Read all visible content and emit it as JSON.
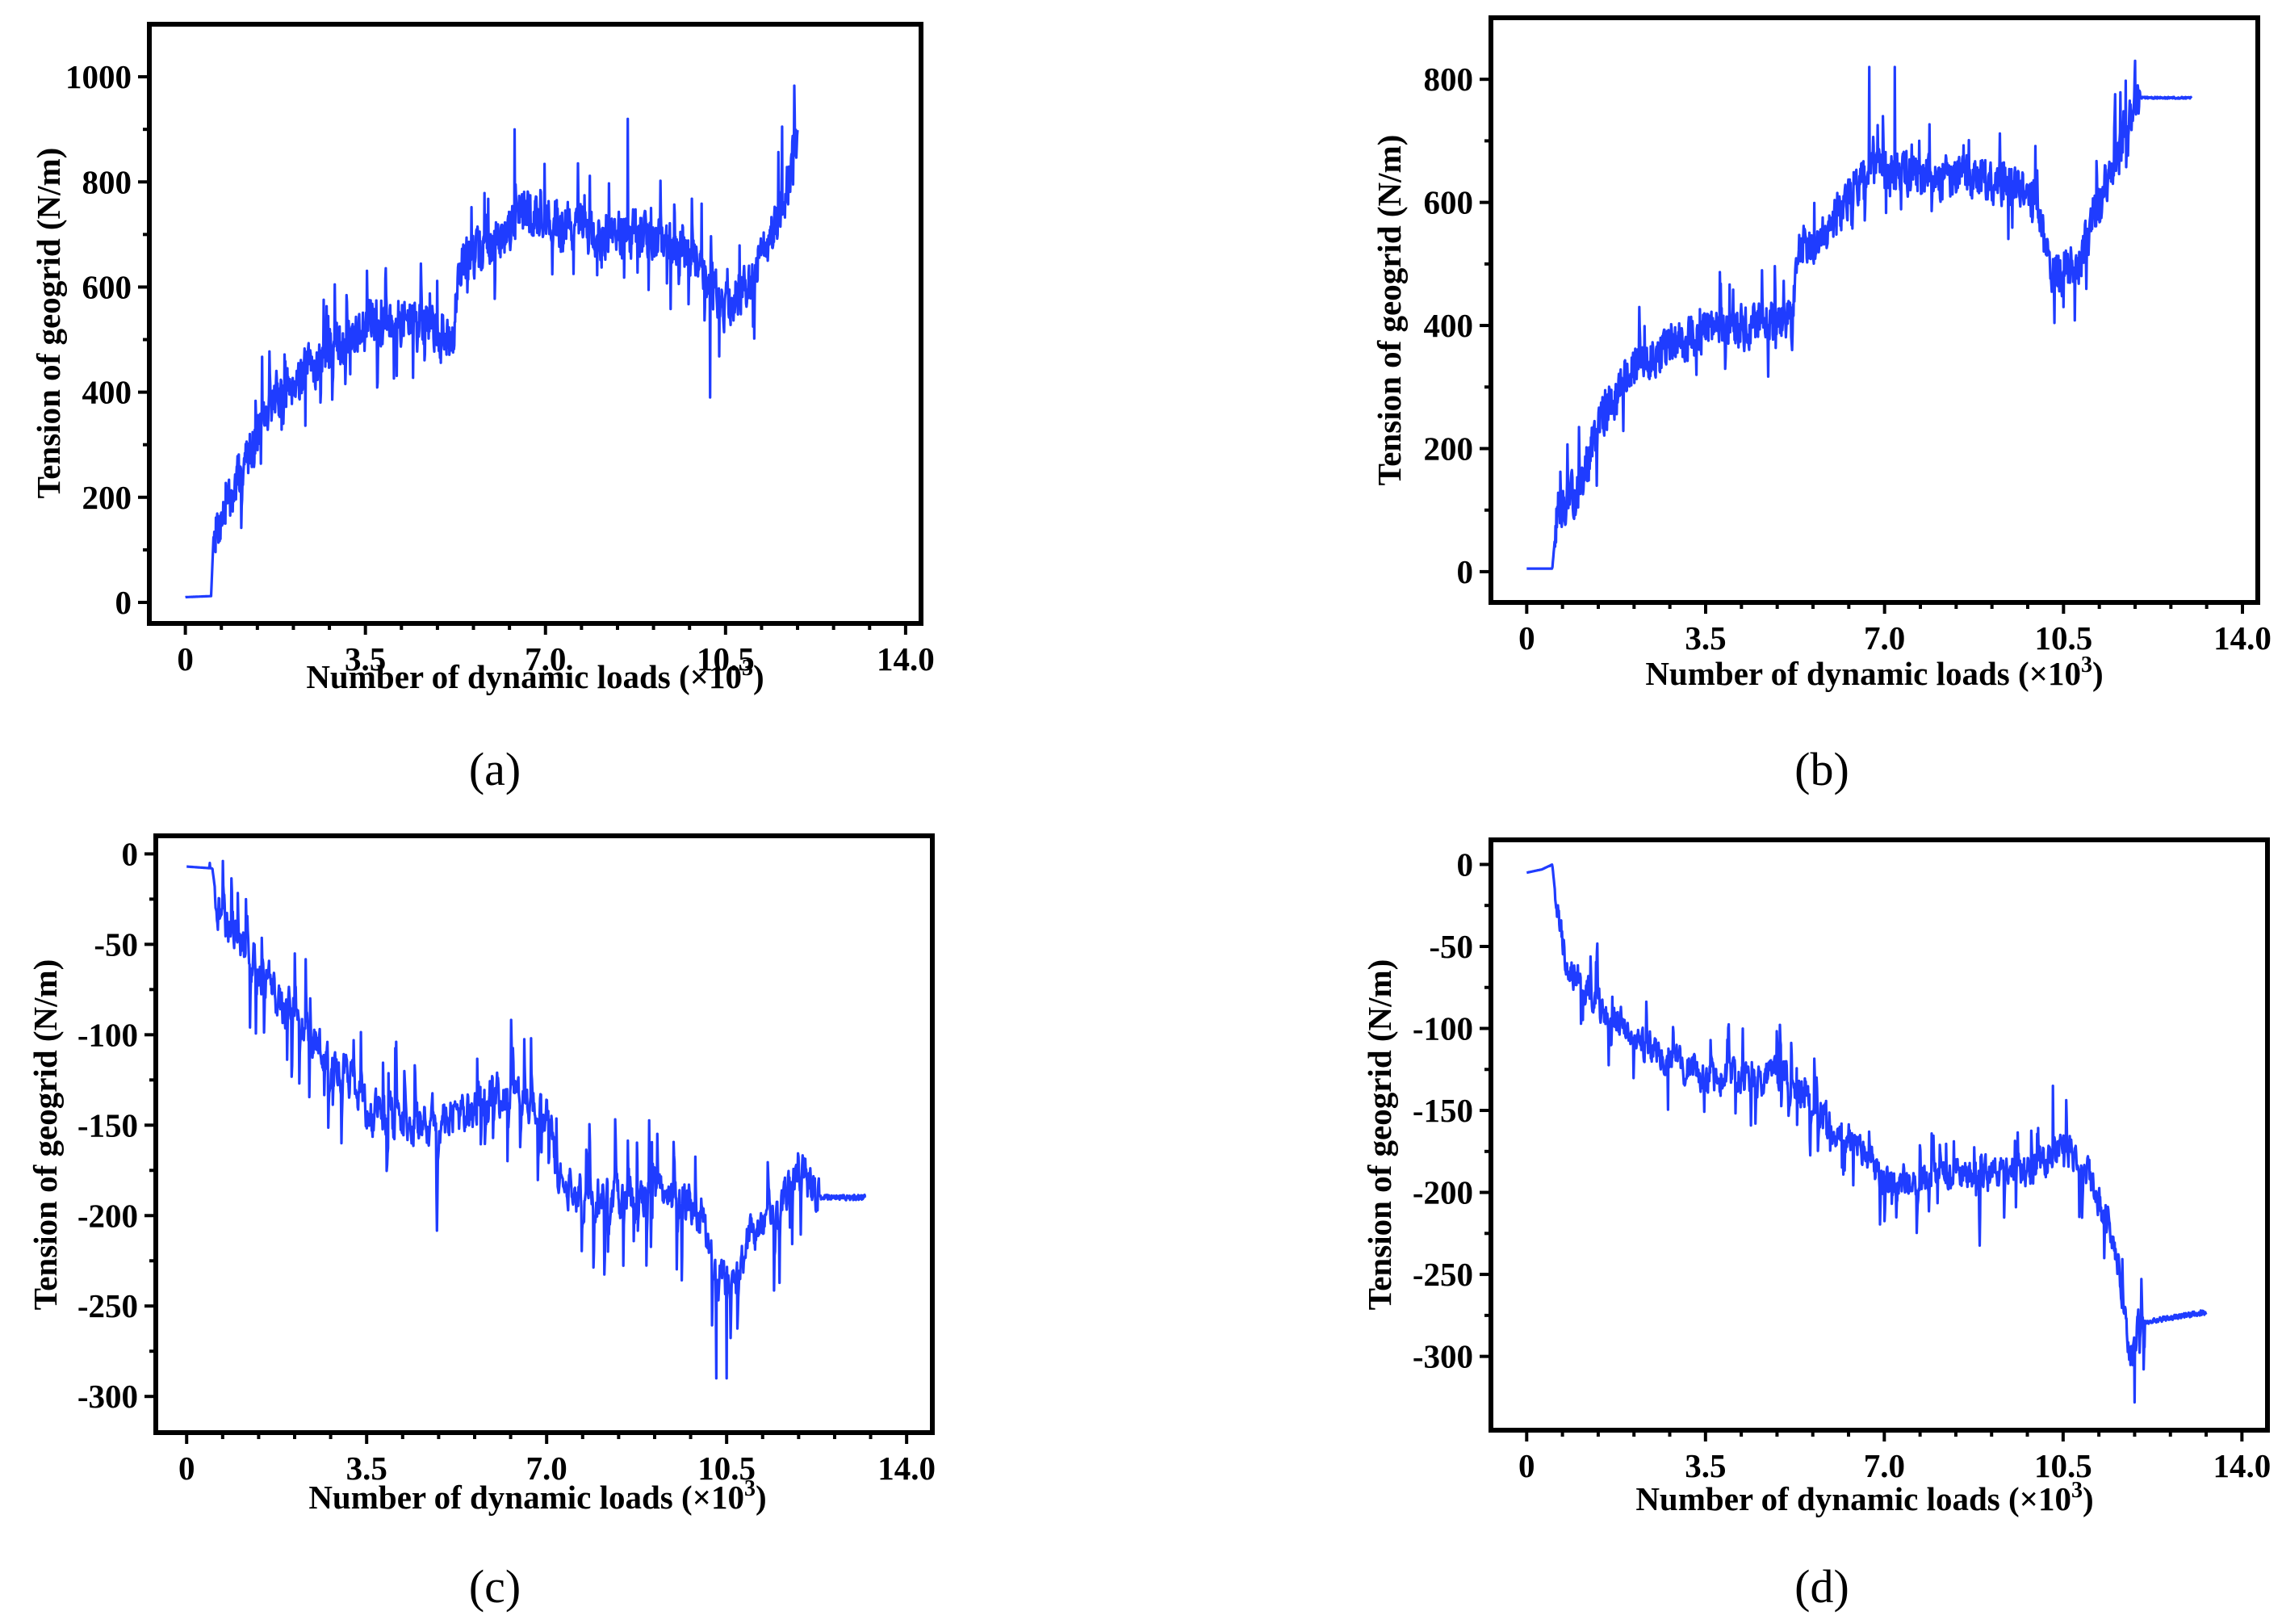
{
  "figure": {
    "series_color": "#1f3cff",
    "panels": [
      {
        "id": "a",
        "label": "(a)",
        "chart_data": {
          "type": "line",
          "xlabel": "Number of dynamic loads (×10",
          "xlabel_exp": "3",
          "xlabel_close": ")",
          "ylabel": "Tension of geogrid (N/m)",
          "xlim": [
            -0.7,
            14.3
          ],
          "ylim": [
            -40,
            1100
          ],
          "xticks": [
            0,
            3.5,
            7.0,
            10.5,
            14.0
          ],
          "xtick_labels": [
            "0",
            "3.5",
            "7.0",
            "10.5",
            "14.0"
          ],
          "yticks": [
            0,
            200,
            400,
            600,
            800,
            1000
          ],
          "ytick_labels": [
            "0",
            "200",
            "400",
            "600",
            "800",
            "1000"
          ],
          "series": [
            {
              "name": "tension",
              "x_start": 0.0,
              "x_end": 11.9,
              "noise": [
                60,
                0.35
              ],
              "seed": 7,
              "trend": [
                [
                  0,
                  10
                ],
                [
                  0.5,
                  12
                ],
                [
                  0.55,
                  130
                ],
                [
                  0.9,
                  200
                ],
                [
                  1.3,
                  300
                ],
                [
                  1.8,
                  400
                ],
                [
                  2.5,
                  450
                ],
                [
                  3.2,
                  510
                ],
                [
                  4.0,
                  540
                ],
                [
                  4.8,
                  530
                ],
                [
                  5.2,
                  480
                ],
                [
                  5.3,
                  640
                ],
                [
                  6.0,
                  680
                ],
                [
                  6.5,
                  740
                ],
                [
                  7.0,
                  730
                ],
                [
                  8.0,
                  700
                ],
                [
                  8.7,
                  700
                ],
                [
                  9.5,
                  680
                ],
                [
                  10.2,
                  620
                ],
                [
                  10.5,
                  560
                ],
                [
                  11.0,
                  620
                ],
                [
                  11.5,
                  720
                ],
                [
                  11.9,
                  880
                ]
              ],
              "spikes": [
                [
                  8.6,
                  920
                ],
                [
                  10.2,
                  390
                ],
                [
                  6.4,
                  900
                ],
                [
                  11.6,
                  905
                ]
              ]
            }
          ]
        }
      },
      {
        "id": "b",
        "label": "(b)",
        "chart_data": {
          "type": "line",
          "xlabel": "Number of dynamic loads (×10",
          "xlabel_exp": "3",
          "xlabel_close": ")",
          "ylabel": "Tension of geogrid (N/m)",
          "xlim": [
            -0.7,
            14.3
          ],
          "ylim": [
            -50,
            900
          ],
          "xticks": [
            0,
            3.5,
            7.0,
            10.5,
            14.0
          ],
          "xtick_labels": [
            "0",
            "3.5",
            "7.0",
            "10.5",
            "14.0"
          ],
          "yticks": [
            0,
            200,
            400,
            600,
            800
          ],
          "ytick_labels": [
            "0",
            "200",
            "400",
            "600",
            "800"
          ],
          "series": [
            {
              "name": "tension",
              "x_start": 0.0,
              "x_end": 13.0,
              "noise": [
                45,
                0.3
              ],
              "seed": 13,
              "trend": [
                [
                  0,
                  5
                ],
                [
                  0.5,
                  5
                ],
                [
                  0.6,
                  100
                ],
                [
                  1.0,
                  130
                ],
                [
                  1.5,
                  260
                ],
                [
                  2.0,
                  320
                ],
                [
                  2.8,
                  370
                ],
                [
                  3.5,
                  390
                ],
                [
                  4.5,
                  400
                ],
                [
                  5.2,
                  410
                ],
                [
                  5.3,
                  520
                ],
                [
                  6.0,
                  570
                ],
                [
                  6.5,
                  640
                ],
                [
                  7.0,
                  650
                ],
                [
                  8.5,
                  640
                ],
                [
                  9.5,
                  630
                ],
                [
                  10.0,
                  600
                ],
                [
                  10.3,
                  480
                ],
                [
                  10.8,
                  500
                ],
                [
                  11.2,
                  600
                ],
                [
                  11.7,
                  700
                ],
                [
                  11.9,
                  780
                ],
                [
                  12.0,
                  770
                ],
                [
                  13.0,
                  770
                ]
              ],
              "spikes": [
                [
                  6.7,
                  820
                ],
                [
                  7.2,
                  820
                ],
                [
                  11.9,
                  830
                ],
                [
                  10.5,
                  430
                ]
              ],
              "quiet_from": 12.0
            }
          ]
        }
      },
      {
        "id": "c",
        "label": "(c)",
        "chart_data": {
          "type": "line",
          "xlabel": "Number of dynamic loads (×10",
          "xlabel_exp": "3",
          "xlabel_close": ")",
          "ylabel": "Tension of geogrid (N/m)",
          "xlim": [
            -0.6,
            14.5
          ],
          "ylim": [
            -320,
            10
          ],
          "xticks": [
            0,
            3.5,
            7.0,
            10.5,
            14.0
          ],
          "xtick_labels": [
            "0",
            "3.5",
            "7.0",
            "10.5",
            "14.0"
          ],
          "yticks": [
            0,
            -50,
            -100,
            -150,
            -200,
            -250,
            -300
          ],
          "ytick_labels": [
            "0",
            "-50",
            "-100",
            "-150",
            "-200",
            "-250",
            "-300"
          ],
          "series": [
            {
              "name": "tension",
              "x_start": 0.0,
              "x_end": 13.2,
              "noise": [
                22,
                0.6
              ],
              "seed": 21,
              "trend": [
                [
                  0,
                  -7
                ],
                [
                  0.5,
                  -8
                ],
                [
                  0.6,
                  -30
                ],
                [
                  1.0,
                  -45
                ],
                [
                  1.8,
                  -80
                ],
                [
                  2.5,
                  -105
                ],
                [
                  3.2,
                  -125
                ],
                [
                  3.5,
                  -145
                ],
                [
                  4.5,
                  -148
                ],
                [
                  5.5,
                  -145
                ],
                [
                  6.0,
                  -132
                ],
                [
                  6.8,
                  -140
                ],
                [
                  7.1,
                  -150
                ],
                [
                  7.2,
                  -185
                ],
                [
                  8.0,
                  -190
                ],
                [
                  9.0,
                  -190
                ],
                [
                  10.0,
                  -195
                ],
                [
                  10.3,
                  -235
                ],
                [
                  10.6,
                  -240
                ],
                [
                  11.0,
                  -210
                ],
                [
                  11.5,
                  -200
                ],
                [
                  11.9,
                  -170
                ],
                [
                  12.2,
                  -190
                ],
                [
                  13.2,
                  -190
                ]
              ],
              "spikes": [
                [
                  10.3,
                  -290
                ],
                [
                  10.5,
                  -290
                ],
                [
                  0.45,
                  -5
                ]
              ],
              "quiet_from": 12.3
            }
          ]
        }
      },
      {
        "id": "d",
        "label": "(d)",
        "chart_data": {
          "type": "line",
          "xlabel": "Number of dynamic loads (×10",
          "xlabel_exp": "3",
          "xlabel_close": ")",
          "ylabel": "Tension of geogrid (N/m)",
          "xlim": [
            -0.7,
            14.5
          ],
          "ylim": [
            -345,
            15
          ],
          "xticks": [
            0,
            3.5,
            7.0,
            10.5,
            14.0
          ],
          "xtick_labels": [
            "0",
            "3.5",
            "7.0",
            "10.5",
            "14.0"
          ],
          "yticks": [
            0,
            -50,
            -100,
            -150,
            -200,
            -250,
            -300
          ],
          "ytick_labels": [
            "0",
            "-50",
            "-100",
            "-150",
            "-200",
            "-250",
            "-300"
          ],
          "series": [
            {
              "name": "tension",
              "x_start": 0.0,
              "x_end": 13.3,
              "noise": [
                16,
                0.5
              ],
              "seed": 33,
              "trend": [
                [
                  0,
                  -5
                ],
                [
                  0.3,
                  -3
                ],
                [
                  0.5,
                  0
                ],
                [
                  0.6,
                  -30
                ],
                [
                  0.8,
                  -60
                ],
                [
                  1.5,
                  -90
                ],
                [
                  2.5,
                  -115
                ],
                [
                  3.5,
                  -130
                ],
                [
                  4.5,
                  -132
                ],
                [
                  5.0,
                  -125
                ],
                [
                  5.5,
                  -145
                ],
                [
                  6.5,
                  -170
                ],
                [
                  7.0,
                  -195
                ],
                [
                  8.0,
                  -190
                ],
                [
                  9.0,
                  -190
                ],
                [
                  10.0,
                  -185
                ],
                [
                  10.5,
                  -170
                ],
                [
                  11.0,
                  -190
                ],
                [
                  11.4,
                  -220
                ],
                [
                  11.6,
                  -250
                ],
                [
                  11.8,
                  -300
                ],
                [
                  12.0,
                  -280
                ],
                [
                  12.3,
                  -278
                ],
                [
                  13.3,
                  -273
                ]
              ],
              "spikes": [
                [
                  10.3,
                  -135
                ],
                [
                  11.9,
                  -328
                ],
                [
                  0.45,
                  -1
                ]
              ],
              "quiet_from": 12.1
            }
          ]
        }
      }
    ]
  }
}
